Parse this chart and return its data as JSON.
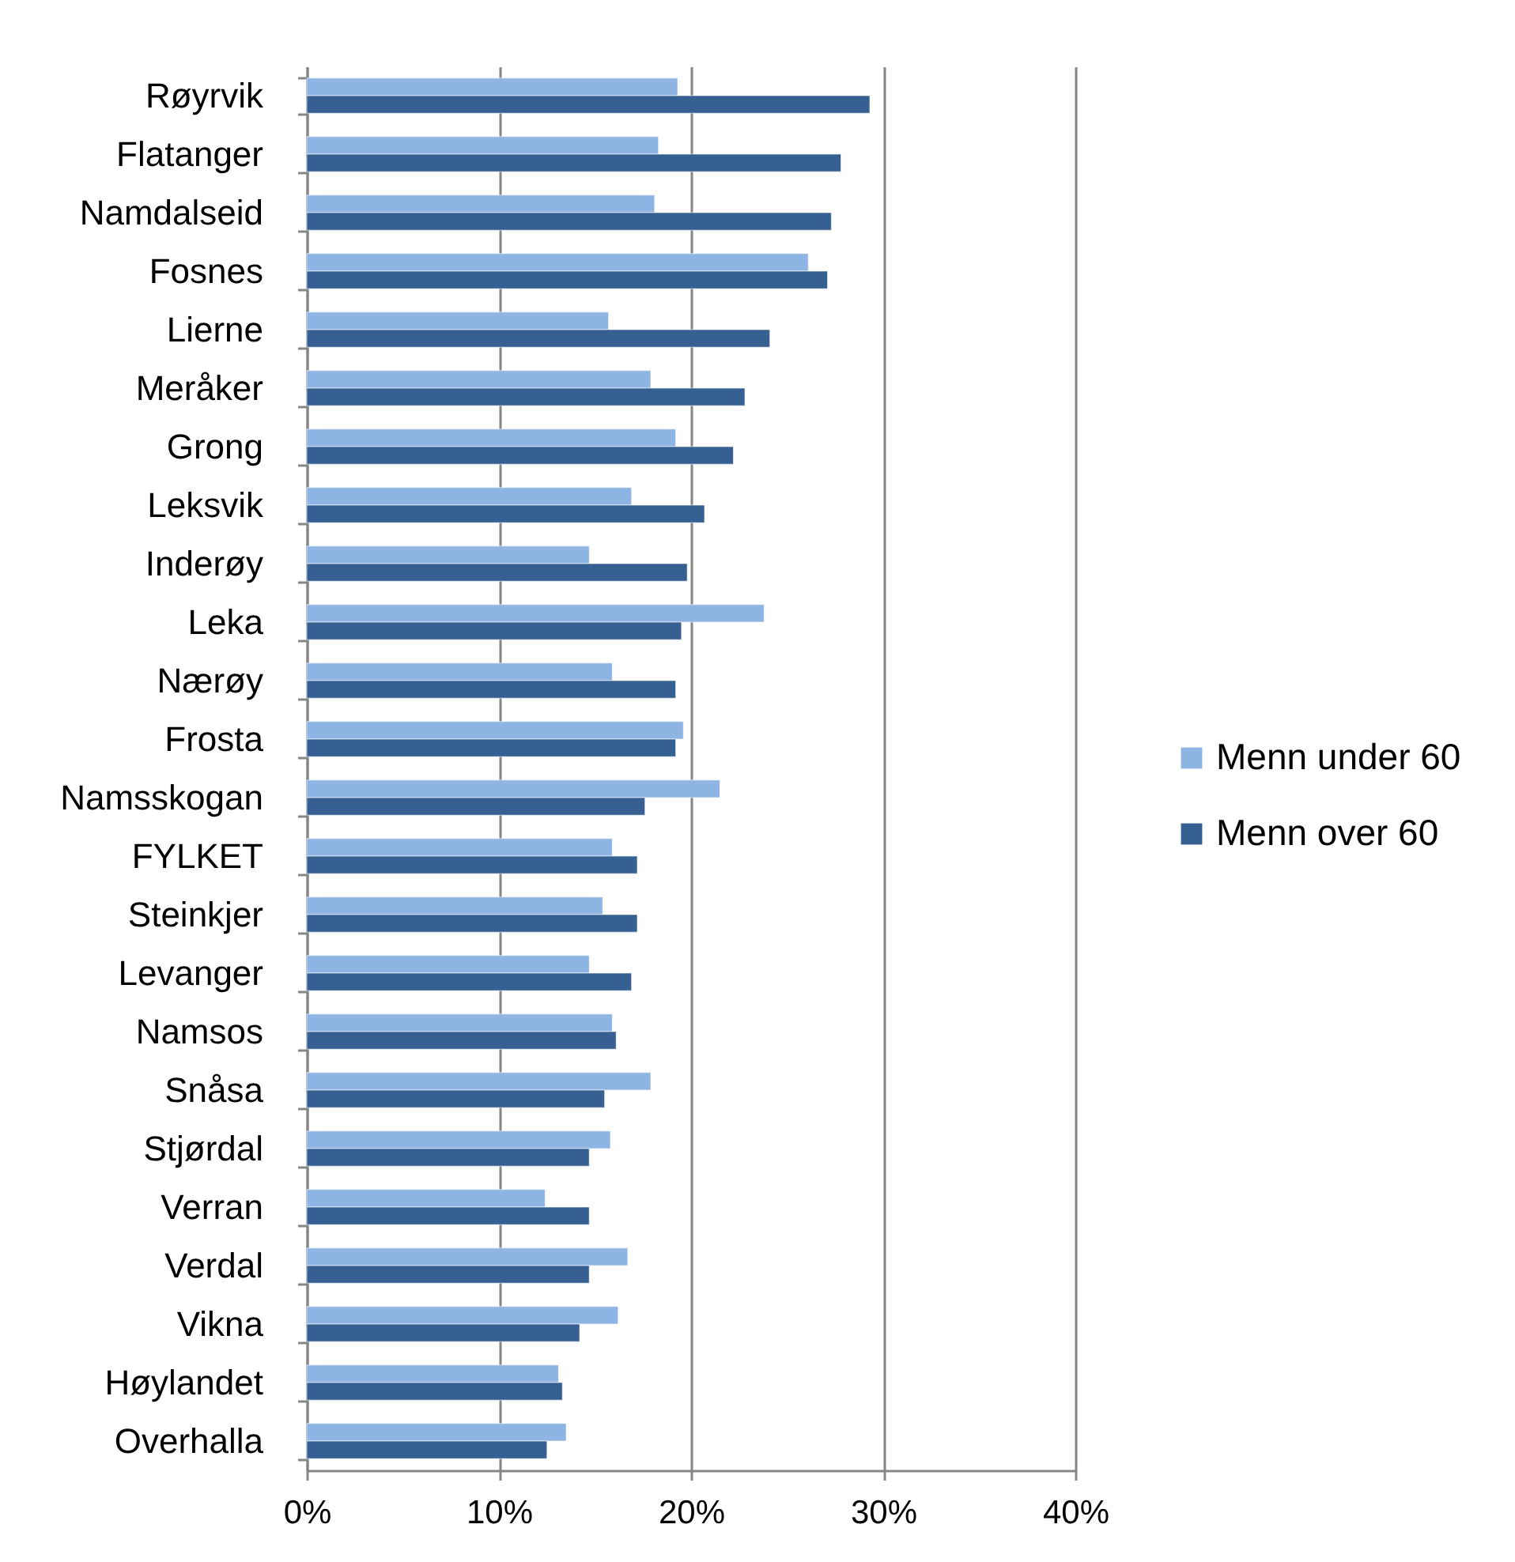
{
  "chart_data": {
    "type": "bar",
    "orientation": "horizontal",
    "categories": [
      "Røyrvik",
      "Flatanger",
      "Namdalseid",
      "Fosnes",
      "Lierne",
      "Meråker",
      "Grong",
      "Leksvik",
      "Inderøy",
      "Leka",
      "Nærøy",
      "Frosta",
      "Namsskogan",
      "FYLKET",
      "Steinkjer",
      "Levanger",
      "Namsos",
      "Snåsa",
      "Stjørdal",
      "Verran",
      "Verdal",
      "Vikna",
      "Høylandet",
      "Overhalla"
    ],
    "series": [
      {
        "name": "Menn under 60",
        "color": "#8eb4e3",
        "values": [
          19.3,
          18.3,
          18.1,
          26.1,
          15.7,
          17.9,
          19.2,
          16.9,
          14.7,
          23.8,
          15.9,
          19.6,
          21.5,
          15.9,
          15.4,
          14.7,
          15.9,
          17.9,
          15.8,
          12.4,
          16.7,
          16.2,
          13.1,
          13.5
        ]
      },
      {
        "name": "Menn over 60",
        "color": "#376092",
        "values": [
          29.3,
          27.8,
          27.3,
          27.1,
          24.1,
          22.8,
          22.2,
          20.7,
          19.8,
          19.5,
          19.2,
          19.2,
          17.6,
          17.2,
          17.2,
          16.9,
          16.1,
          15.5,
          14.7,
          14.7,
          14.7,
          14.2,
          13.3,
          12.5
        ]
      }
    ],
    "xlim": [
      0,
      40
    ],
    "xticks": [
      {
        "value": 0,
        "label": "0%"
      },
      {
        "value": 10,
        "label": "10%"
      },
      {
        "value": 20,
        "label": "20%"
      },
      {
        "value": 30,
        "label": "30%"
      },
      {
        "value": 40,
        "label": "40%"
      }
    ],
    "grid": "x",
    "legend": "right"
  }
}
